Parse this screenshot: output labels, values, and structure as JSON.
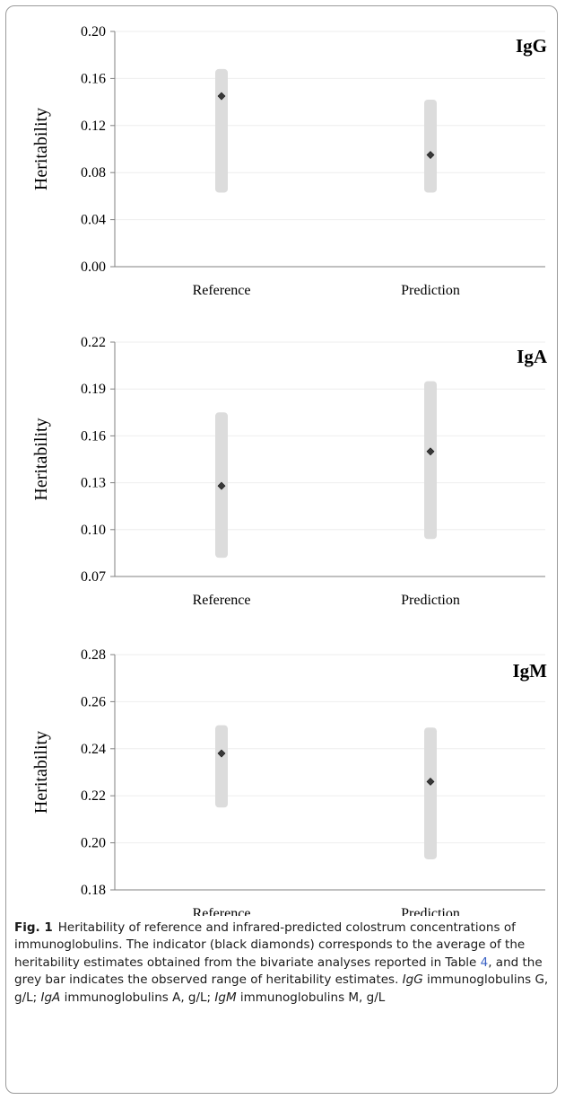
{
  "chart_data": [
    {
      "type": "range",
      "title": "IgG",
      "ylabel": "Heritability",
      "categories": [
        "Reference",
        "Prediction"
      ],
      "yticks": [
        "0.00",
        "0.04",
        "0.08",
        "0.12",
        "0.16",
        "0.20"
      ],
      "ylim": [
        0.0,
        0.2
      ],
      "grid": true,
      "ranges": [
        [
          0.063,
          0.168
        ],
        [
          0.063,
          0.142
        ]
      ],
      "means": [
        0.145,
        0.095
      ]
    },
    {
      "type": "range",
      "title": "IgA",
      "ylabel": "Heritability",
      "categories": [
        "Reference",
        "Prediction"
      ],
      "yticks": [
        "0.07",
        "0.10",
        "0.13",
        "0.16",
        "0.19",
        "0.22"
      ],
      "ylim": [
        0.07,
        0.22
      ],
      "grid": true,
      "ranges": [
        [
          0.082,
          0.175
        ],
        [
          0.094,
          0.195
        ]
      ],
      "means": [
        0.128,
        0.15
      ]
    },
    {
      "type": "range",
      "title": "IgM",
      "ylabel": "Heritability",
      "categories": [
        "Reference",
        "Prediction"
      ],
      "yticks": [
        "0.18",
        "0.20",
        "0.22",
        "0.24",
        "0.26",
        "0.28"
      ],
      "ylim": [
        0.18,
        0.28
      ],
      "grid": true,
      "ranges": [
        [
          0.215,
          0.25
        ],
        [
          0.193,
          0.249
        ]
      ],
      "means": [
        0.238,
        0.226
      ]
    }
  ],
  "caption": {
    "label": "Fig. 1",
    "title": "Heritability of reference and infrared-predicted colostrum concentrations of immunoglobulins.",
    "body_1": "The indicator (black diamonds) corresponds to the average of the heritability estimates obtained from the bivariate analyses reported in Table ",
    "table_ref": "4",
    "body_2": ", and the grey bar indicates the observed range of heritability estimates. ",
    "abbr_igg": "IgG",
    "def_igg": " immunoglobulins G, g/L; ",
    "abbr_iga": "IgA",
    "def_iga": " immunoglobulins A, g/L; ",
    "abbr_igm": "IgM",
    "def_igm": " immunoglobulins M, g/L"
  },
  "colors": {
    "range_bar": "#dcdcdc",
    "marker_fill": "#3a3a3a",
    "axis": "#808080",
    "grid": "#eeeeee"
  }
}
